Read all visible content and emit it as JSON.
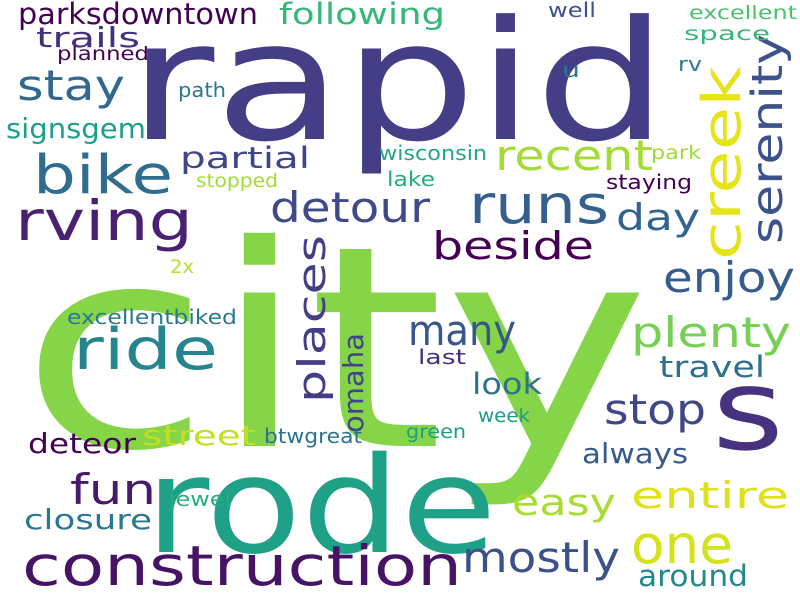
{
  "words": [
    {
      "text": "city",
      "color": "#86d549"
    },
    {
      "text": "rapid",
      "color": "#433e85"
    },
    {
      "text": "rode",
      "color": "#1fa188"
    },
    {
      "text": "s",
      "color": "#46327e"
    },
    {
      "text": "construction",
      "color": "#471365"
    },
    {
      "text": "rving",
      "color": "#482173"
    },
    {
      "text": "bike",
      "color": "#2f6c8e"
    },
    {
      "text": "ride",
      "color": "#25858e"
    },
    {
      "text": "runs",
      "color": "#355f8d"
    },
    {
      "text": "creek",
      "color": "#e5e419"
    },
    {
      "text": "one",
      "color": "#d2e21b"
    },
    {
      "text": "serenity",
      "color": "#3b528b"
    },
    {
      "text": "detour",
      "color": "#3e4a89"
    },
    {
      "text": "stay",
      "color": "#31688e"
    },
    {
      "text": "places",
      "color": "#433e85"
    },
    {
      "text": "recent",
      "color": "#a5db36"
    },
    {
      "text": "beside",
      "color": "#440154"
    },
    {
      "text": "many",
      "color": "#39568c"
    },
    {
      "text": "plenty",
      "color": "#75d054"
    },
    {
      "text": "enjoy",
      "color": "#365c8d"
    },
    {
      "text": "day",
      "color": "#32648e"
    },
    {
      "text": "entire",
      "color": "#dde318"
    },
    {
      "text": "easy",
      "color": "#a8db34"
    },
    {
      "text": "fun",
      "color": "#481a6c"
    },
    {
      "text": "mostly",
      "color": "#3b518b"
    },
    {
      "text": "stop",
      "color": "#404688"
    },
    {
      "text": "parksdowntown",
      "color": "#440154"
    },
    {
      "text": "following",
      "color": "#35b779"
    },
    {
      "text": "trails",
      "color": "#46307e"
    },
    {
      "text": "partial",
      "color": "#404588"
    },
    {
      "text": "omaha",
      "color": "#414487"
    },
    {
      "text": "signsgem",
      "color": "#1f9e89"
    },
    {
      "text": "around",
      "color": "#23888e"
    },
    {
      "text": "travel",
      "color": "#2d708e"
    },
    {
      "text": "look",
      "color": "#2c728e"
    },
    {
      "text": "closure",
      "color": "#2a788e"
    },
    {
      "text": "street",
      "color": "#c2df23"
    },
    {
      "text": "deteor",
      "color": "#440154"
    },
    {
      "text": "always",
      "color": "#375a8c"
    },
    {
      "text": "excellent",
      "color": "#4ac16d"
    },
    {
      "text": "space",
      "color": "#35b779"
    },
    {
      "text": "planned",
      "color": "#440154"
    },
    {
      "text": "well",
      "color": "#3b528b"
    },
    {
      "text": "u",
      "color": "#287c8e"
    },
    {
      "text": "rv",
      "color": "#287d8e"
    },
    {
      "text": "path",
      "color": "#2a788e"
    },
    {
      "text": "wisconsin",
      "color": "#22a785"
    },
    {
      "text": "park",
      "color": "#a0da39"
    },
    {
      "text": "stopped",
      "color": "#a5db36"
    },
    {
      "text": "lake",
      "color": "#25ab82"
    },
    {
      "text": "staying",
      "color": "#440154"
    },
    {
      "text": "2x",
      "color": "#b5de2b"
    },
    {
      "text": "excellentbiked",
      "color": "#2a788e"
    },
    {
      "text": "last",
      "color": "#472d7b"
    },
    {
      "text": "week",
      "color": "#1f9a8a"
    },
    {
      "text": "btwgreat",
      "color": "#2c728e"
    },
    {
      "text": "green",
      "color": "#1e9b8a"
    },
    {
      "text": "jewel",
      "color": "#26ad81"
    }
  ]
}
